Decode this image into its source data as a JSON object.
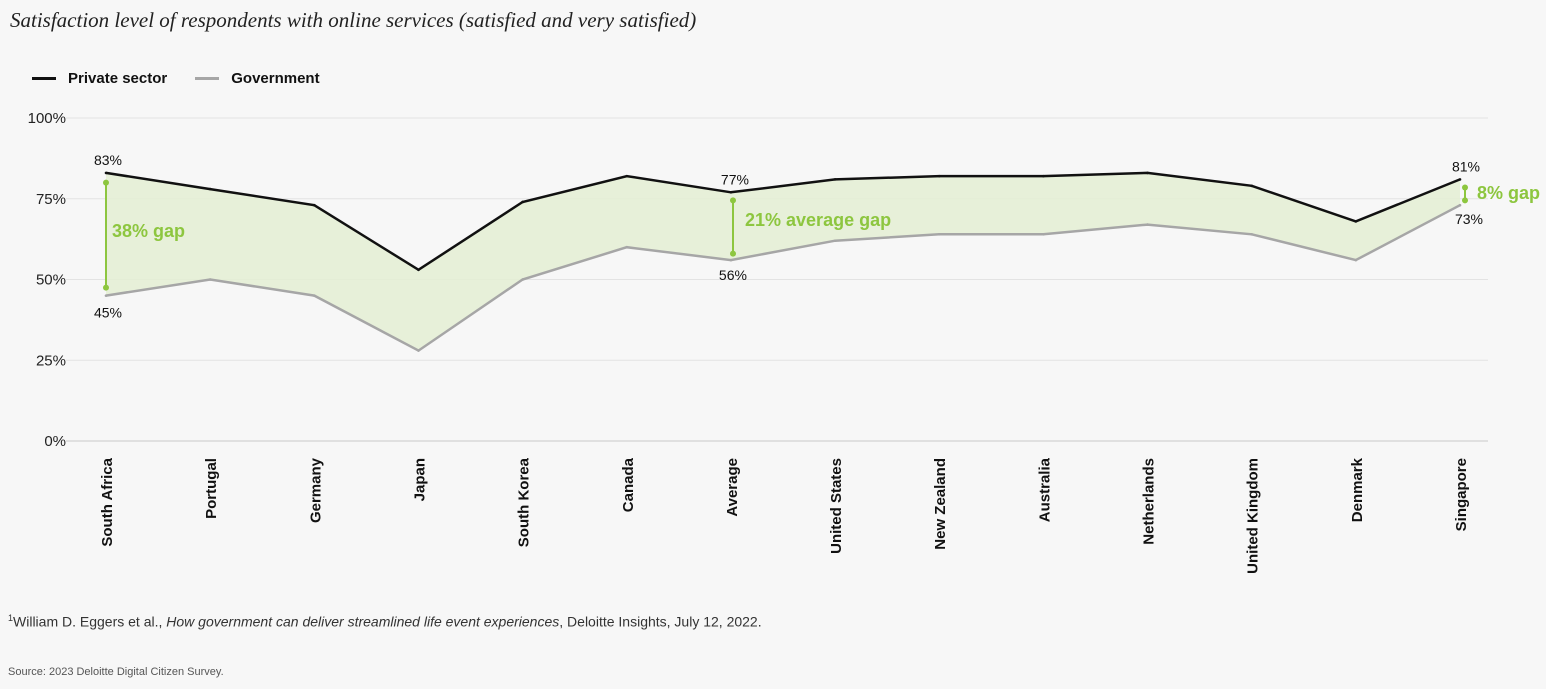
{
  "chart_data": {
    "type": "line",
    "title": "Satisfaction level of respondents with online services (satisfied and very satisfied)",
    "categories": [
      "South Africa",
      "Portugal",
      "Germany",
      "Japan",
      "South Korea",
      "Canada",
      "Average",
      "United States",
      "New Zealand",
      "Australia",
      "Netherlands",
      "United Kingdom",
      "Denmark",
      "Singapore"
    ],
    "series": [
      {
        "name": "Private sector",
        "color": "#111111",
        "values": [
          83,
          78,
          73,
          53,
          74,
          82,
          77,
          81,
          82,
          82,
          83,
          79,
          68,
          81
        ]
      },
      {
        "name": "Government",
        "color": "#a6a6a6",
        "values": [
          45,
          50,
          45,
          28,
          50,
          60,
          56,
          62,
          64,
          64,
          67,
          64,
          56,
          73
        ]
      }
    ],
    "ylim": [
      0,
      100
    ],
    "yticks": [
      0,
      25,
      50,
      75,
      100
    ],
    "ytick_labels": [
      "0%",
      "25%",
      "50%",
      "75%",
      "100%"
    ],
    "fill_color": "#e4efd3",
    "accent_color": "#8dc63f",
    "data_labels": {
      "south_africa_private": "83%",
      "south_africa_government": "45%",
      "average_private": "77%",
      "average_government": "56%",
      "singapore_private": "81%",
      "singapore_government": "73%"
    },
    "annotations": {
      "south_africa_gap": "38% gap",
      "average_gap": "21% average gap",
      "singapore_gap": "8% gap"
    }
  },
  "footnote": {
    "marker": "1",
    "author": "William D. Eggers et al., ",
    "work": "How government can deliver streamlined life event experiences",
    "rest": ", Deloitte Insights, July 12, 2022."
  },
  "source": "Source: 2023 Deloitte Digital Citizen Survey."
}
